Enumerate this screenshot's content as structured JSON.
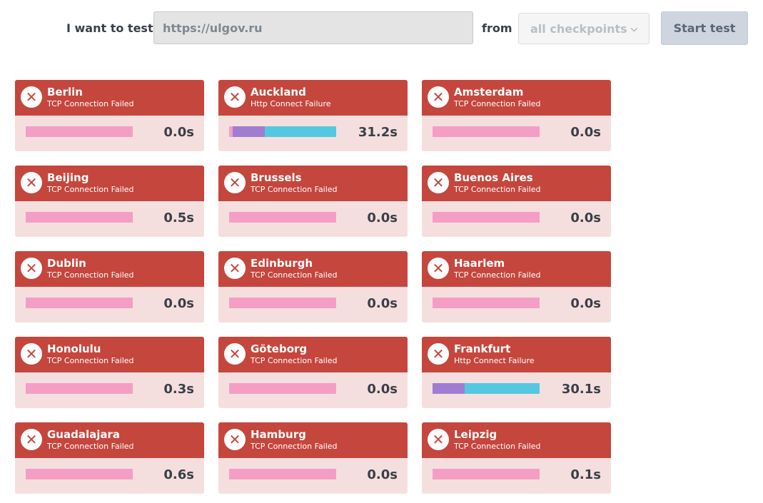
{
  "form": {
    "want_label": "I want to test",
    "url_value": "https://ulgov.ru",
    "from_label": "from",
    "checkpoint_selected": "all checkpoints",
    "start_button": "Start test"
  },
  "colors": {
    "header_fail": "#c5463d",
    "body_fail": "#f5dfde",
    "bar_pink": "#f49ec6",
    "bar_purple": "#a07dd1",
    "bar_cyan": "#54c8e1"
  },
  "results": [
    {
      "city": "Berlin",
      "status": "TCP Connection Failed",
      "time": "0.0s",
      "icon": "fail-x-icon",
      "segments": [
        {
          "color": "pink",
          "fraction": 1.0
        }
      ]
    },
    {
      "city": "Auckland",
      "status": "Http Connect Failure",
      "time": "31.2s",
      "icon": "fail-x-icon",
      "segments": [
        {
          "color": "pink",
          "fraction": 0.03
        },
        {
          "color": "purple",
          "fraction": 0.3
        },
        {
          "color": "cyan",
          "fraction": 0.67
        }
      ]
    },
    {
      "city": "Amsterdam",
      "status": "TCP Connection Failed",
      "time": "0.0s",
      "icon": "fail-x-icon",
      "segments": [
        {
          "color": "pink",
          "fraction": 1.0
        }
      ]
    },
    {
      "city": "Beijing",
      "status": "TCP Connection Failed",
      "time": "0.5s",
      "icon": "fail-x-icon",
      "segments": [
        {
          "color": "pink",
          "fraction": 1.0
        }
      ]
    },
    {
      "city": "Brussels",
      "status": "TCP Connection Failed",
      "time": "0.0s",
      "icon": "fail-x-icon",
      "segments": [
        {
          "color": "pink",
          "fraction": 1.0
        }
      ]
    },
    {
      "city": "Buenos Aires",
      "status": "TCP Connection Failed",
      "time": "0.0s",
      "icon": "fail-x-icon",
      "segments": [
        {
          "color": "pink",
          "fraction": 1.0
        }
      ]
    },
    {
      "city": "Dublin",
      "status": "TCP Connection Failed",
      "time": "0.0s",
      "icon": "fail-x-icon",
      "segments": [
        {
          "color": "pink",
          "fraction": 1.0
        }
      ]
    },
    {
      "city": "Edinburgh",
      "status": "TCP Connection Failed",
      "time": "0.0s",
      "icon": "fail-x-icon",
      "segments": [
        {
          "color": "pink",
          "fraction": 1.0
        }
      ]
    },
    {
      "city": "Haarlem",
      "status": "TCP Connection Failed",
      "time": "0.0s",
      "icon": "fail-x-icon",
      "segments": [
        {
          "color": "pink",
          "fraction": 1.0
        }
      ]
    },
    {
      "city": "Honolulu",
      "status": "TCP Connection Failed",
      "time": "0.3s",
      "icon": "fail-x-icon",
      "segments": [
        {
          "color": "pink",
          "fraction": 1.0
        }
      ]
    },
    {
      "city": "Göteborg",
      "status": "TCP Connection Failed",
      "time": "0.0s",
      "icon": "fail-x-icon",
      "segments": [
        {
          "color": "pink",
          "fraction": 1.0
        }
      ]
    },
    {
      "city": "Frankfurt",
      "status": "Http Connect Failure",
      "time": "30.1s",
      "icon": "fail-x-icon",
      "segments": [
        {
          "color": "purple",
          "fraction": 0.3
        },
        {
          "color": "cyan",
          "fraction": 0.7
        }
      ]
    },
    {
      "city": "Guadalajara",
      "status": "TCP Connection Failed",
      "time": "0.6s",
      "icon": "fail-x-icon",
      "segments": [
        {
          "color": "pink",
          "fraction": 1.0
        }
      ]
    },
    {
      "city": "Hamburg",
      "status": "TCP Connection Failed",
      "time": "0.0s",
      "icon": "fail-x-icon",
      "segments": [
        {
          "color": "pink",
          "fraction": 1.0
        }
      ]
    },
    {
      "city": "Leipzig",
      "status": "TCP Connection Failed",
      "time": "0.1s",
      "icon": "fail-x-icon",
      "segments": [
        {
          "color": "pink",
          "fraction": 1.0
        }
      ]
    }
  ]
}
